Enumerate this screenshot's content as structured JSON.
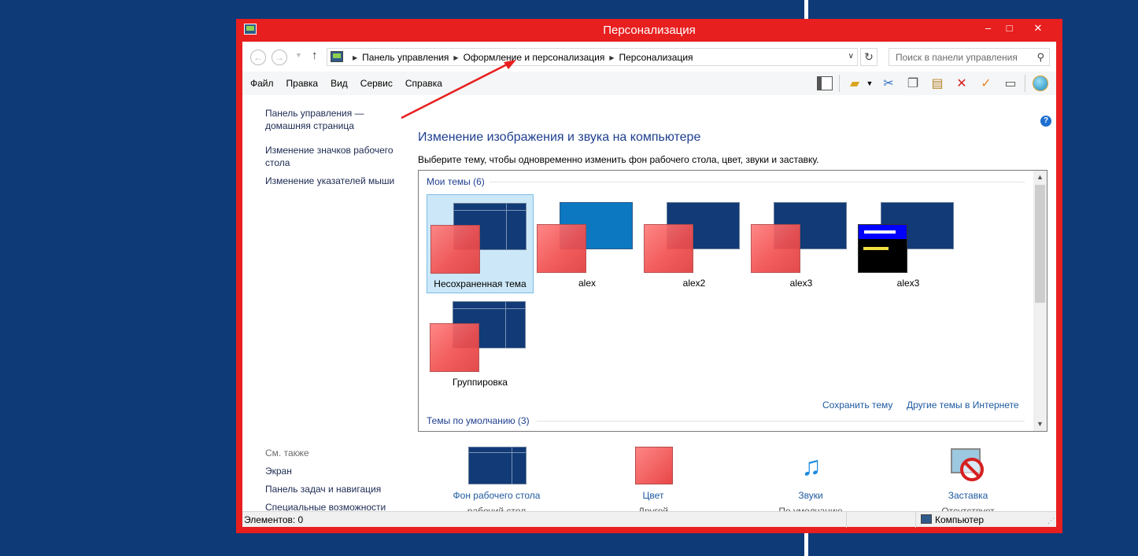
{
  "window": {
    "title": "Персонализация",
    "controls": {
      "minimize": "–",
      "maximize": "□",
      "close": "✕"
    }
  },
  "nav": {
    "back": "←",
    "forward": "→",
    "up": "↑",
    "breadcrumbs": [
      "Панель управления",
      "Оформление и персонализация",
      "Персонализация"
    ],
    "search_placeholder": "Поиск в панели управления"
  },
  "menu": [
    "Файл",
    "Правка",
    "Вид",
    "Сервис",
    "Справка"
  ],
  "toolbar_icons": [
    "pane-icon",
    "folder-check-icon",
    "cut-icon",
    "copy-icon",
    "paste-icon",
    "delete-icon",
    "check-icon",
    "properties-icon",
    "globe-icon"
  ],
  "left_pane": {
    "links": [
      "Панель управления — домашняя страница",
      "Изменение значков рабочего стола",
      "Изменение указателей мыши"
    ],
    "see_also_title": "См. также",
    "see_also": [
      "Экран",
      "Панель задач и навигация",
      "Специальные возможности"
    ]
  },
  "main": {
    "title": "Изменение изображения и звука на компьютере",
    "subtitle": "Выберите тему, чтобы одновременно изменить фон рабочего стола, цвет, звуки и заставку.",
    "my_themes_header": "Мои темы (6)",
    "default_themes_header": "Темы по умолчанию (3)",
    "themes": [
      {
        "name": "Несохраненная тема",
        "selected": true,
        "style": "dark"
      },
      {
        "name": "alex",
        "selected": false,
        "style": "blue"
      },
      {
        "name": "alex2",
        "selected": false,
        "style": "dark"
      },
      {
        "name": "alex3",
        "selected": false,
        "style": "dark"
      },
      {
        "name": "alex3",
        "selected": false,
        "style": "high-contrast"
      },
      {
        "name": "Группировка",
        "selected": false,
        "style": "dark"
      }
    ],
    "save_theme": "Сохранить тему",
    "more_themes": "Другие темы в Интернете"
  },
  "bottom": {
    "background": {
      "label": "Фон рабочего стола",
      "value": "рабочий стол"
    },
    "color": {
      "label": "Цвет",
      "value": "Другой"
    },
    "sounds": {
      "label": "Звуки",
      "value": "По умолчанию"
    },
    "saver": {
      "label": "Заставка",
      "value": "Отсутствует"
    }
  },
  "status": {
    "items": "Элементов: 0",
    "location": "Компьютер"
  },
  "colors": {
    "window_border": "#e81f1f",
    "desktop_bg": "#0e3a78",
    "link": "#1e5aa0",
    "selection": "#cce8f8"
  }
}
